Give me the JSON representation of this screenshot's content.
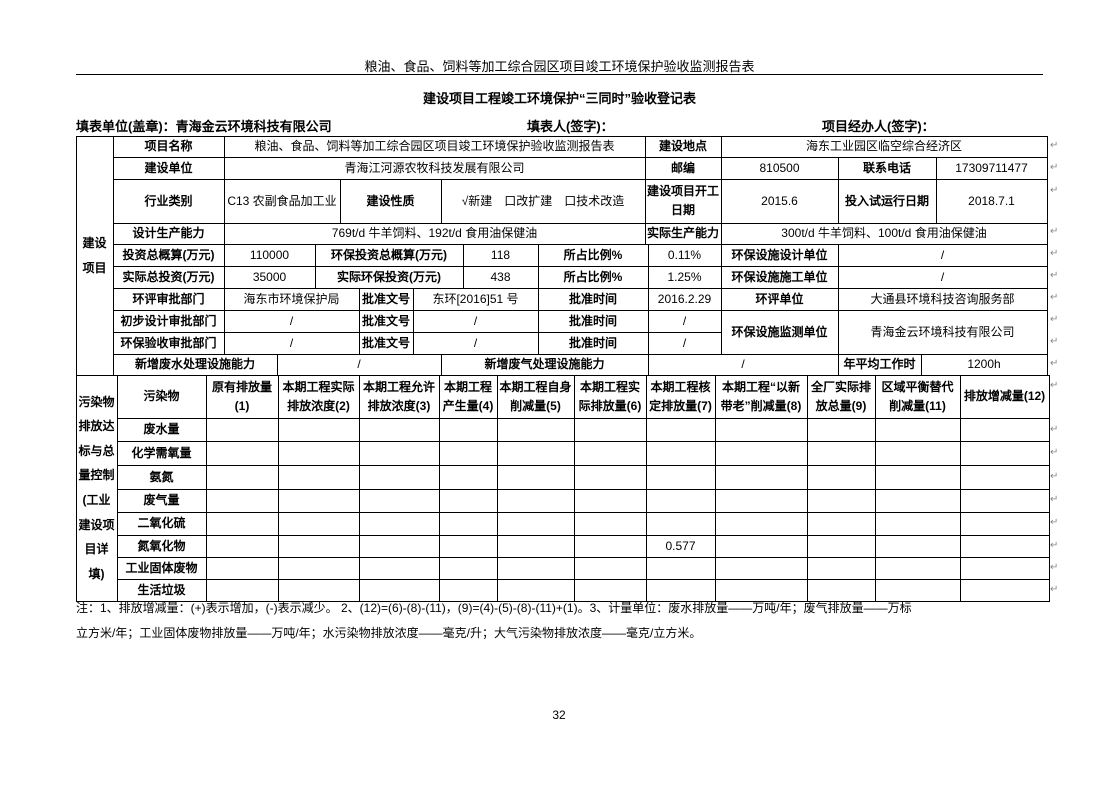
{
  "document": {
    "running_header": "粮油、食品、饲料等加工综合园区项目竣工环境保护验收监测报告表",
    "form_title": "建设项目工程竣工环境保护“三同时”验收登记表",
    "fill_unit": "填表单位(盖章)：青海金云环境科技有限公司",
    "filler": "填表人(签字)：",
    "project_manager": "项目经办人(签字)：",
    "page_number": "32"
  },
  "project_table": {
    "section_label": "建设项目",
    "cells": [
      {
        "text": "项目名称",
        "label": true
      },
      {
        "text": "粮油、食品、饲料等加工综合园区项目竣工环境保护验收监测报告表",
        "label": false
      },
      {
        "text": "建设地点",
        "label": true
      },
      {
        "text": "海东工业园区临空综合经济区",
        "label": false
      },
      {
        "text": "建设单位",
        "label": true
      },
      {
        "text": "青海江河源农牧科技发展有限公司",
        "label": false
      },
      {
        "text": "邮编",
        "label": true
      },
      {
        "text": "810500",
        "label": false
      },
      {
        "text": "联系电话",
        "label": true
      },
      {
        "text": "17309711477",
        "label": false
      },
      {
        "text": "行业类别",
        "label": true
      },
      {
        "text": "C13 农副食品加工业",
        "label": false
      },
      {
        "text": "建设性质",
        "label": true
      },
      {
        "text": "√新建　口改扩建　口技术改造",
        "label": false
      },
      {
        "text": "建设项目开工日期",
        "label": true
      },
      {
        "text": "2015.6",
        "label": false
      },
      {
        "text": "投入试运行日期",
        "label": true
      },
      {
        "text": "2018.7.1",
        "label": false
      },
      {
        "text": "设计生产能力",
        "label": true
      },
      {
        "text": "769t/d 牛羊饲料、192t/d 食用油保健油",
        "label": false
      },
      {
        "text": "实际生产能力",
        "label": true
      },
      {
        "text": "300t/d 牛羊饲料、100t/d 食用油保健油",
        "label": false
      },
      {
        "text": "投资总概算(万元)",
        "label": true
      },
      {
        "text": "110000",
        "label": false
      },
      {
        "text": "环保投资总概算(万元)",
        "label": true
      },
      {
        "text": "118",
        "label": false
      },
      {
        "text": "所占比例%",
        "label": true
      },
      {
        "text": "0.11%",
        "label": false
      },
      {
        "text": "环保设施设计单位",
        "label": true
      },
      {
        "text": "/",
        "label": false
      },
      {
        "text": "实际总投资(万元)",
        "label": true
      },
      {
        "text": "35000",
        "label": false
      },
      {
        "text": "实际环保投资(万元)",
        "label": true
      },
      {
        "text": "438",
        "label": false
      },
      {
        "text": "所占比例%",
        "label": true
      },
      {
        "text": "1.25%",
        "label": false
      },
      {
        "text": "环保设施施工单位",
        "label": true
      },
      {
        "text": "/",
        "label": false
      },
      {
        "text": "环评审批部门",
        "label": true
      },
      {
        "text": "海东市环境保护局",
        "label": false
      },
      {
        "text": "批准文号",
        "label": true
      },
      {
        "text": "东环[2016]51 号",
        "label": false
      },
      {
        "text": "批准时间",
        "label": true
      },
      {
        "text": "2016.2.29",
        "label": false
      },
      {
        "text": "环评单位",
        "label": true
      },
      {
        "text": "大通县环境科技咨询服务部",
        "label": false
      },
      {
        "text": "初步设计审批部门",
        "label": true
      },
      {
        "text": "/",
        "label": false
      },
      {
        "text": "批准文号",
        "label": true
      },
      {
        "text": "/",
        "label": false
      },
      {
        "text": "批准时间",
        "label": true
      },
      {
        "text": "/",
        "label": false
      },
      {
        "text": "环保设施监测单位",
        "label": true
      },
      {
        "text": "青海金云环境科技有限公司",
        "label": false
      },
      {
        "text": "环保验收审批部门",
        "label": true
      },
      {
        "text": "/",
        "label": false
      },
      {
        "text": "批准文号",
        "label": true
      },
      {
        "text": "/",
        "label": false
      },
      {
        "text": "批准时间",
        "label": true
      },
      {
        "text": "/",
        "label": false
      },
      {
        "text": "新增废水处理设施能力",
        "label": true
      },
      {
        "text": "/",
        "label": false
      },
      {
        "text": "新增废气处理设施能力",
        "label": true
      },
      {
        "text": "/",
        "label": false
      },
      {
        "text": "年平均工作时",
        "label": true
      },
      {
        "text": "1200h",
        "label": false
      }
    ]
  },
  "pollution_table": {
    "section_label": "污染物排放达标与总量控制(工业建设项目详填)",
    "headers": [
      "污染物",
      "原有排放量(1)",
      "本期工程实际排放浓度(2)",
      "本期工程允许排放浓度(3)",
      "本期工程产生量(4)",
      "本期工程自身削减量(5)",
      "本期工程实际排放量(6)",
      "本期工程核定排放量(7)",
      "本期工程“以新带老”削减量(8)",
      "全厂实际排放总量(9)",
      "区域平衡替代削减量(11)",
      "排放增减量(12)"
    ],
    "rows": [
      {
        "pollutant": "废水量",
        "values": [
          "",
          "",
          "",
          "",
          "",
          "",
          "",
          "",
          "",
          "",
          ""
        ]
      },
      {
        "pollutant": "化学需氧量",
        "values": [
          "",
          "",
          "",
          "",
          "",
          "",
          "",
          "",
          "",
          "",
          ""
        ]
      },
      {
        "pollutant": "氨氮",
        "values": [
          "",
          "",
          "",
          "",
          "",
          "",
          "",
          "",
          "",
          "",
          ""
        ]
      },
      {
        "pollutant": "废气量",
        "values": [
          "",
          "",
          "",
          "",
          "",
          "",
          "",
          "",
          "",
          "",
          ""
        ]
      },
      {
        "pollutant": "二氧化硫",
        "values": [
          "",
          "",
          "",
          "",
          "",
          "",
          "",
          "",
          "",
          "",
          ""
        ]
      },
      {
        "pollutant": "氮氧化物",
        "values": [
          "",
          "",
          "",
          "",
          "",
          "",
          "0.577",
          "",
          "",
          "",
          ""
        ]
      },
      {
        "pollutant": "工业固体废物",
        "values": [
          "",
          "",
          "",
          "",
          "",
          "",
          "",
          "",
          "",
          "",
          ""
        ]
      },
      {
        "pollutant": "生活垃圾",
        "values": [
          "",
          "",
          "",
          "",
          "",
          "",
          "",
          "",
          "",
          "",
          ""
        ]
      }
    ]
  },
  "notes": {
    "line1": "注：1、排放增减量：(+)表示增加，(-)表示减少。 2、(12)=(6)-(8)-(11)，(9)=(4)-(5)-(8)-(11)+(1)。3、计量单位：废水排放量——万吨/年；废气排放量——万标",
    "line2": "立方米/年；工业固体废物排放量——万吨/年；水污染物排放浓度——毫克/升；大气污染物排放浓度——毫克/立方米。"
  }
}
